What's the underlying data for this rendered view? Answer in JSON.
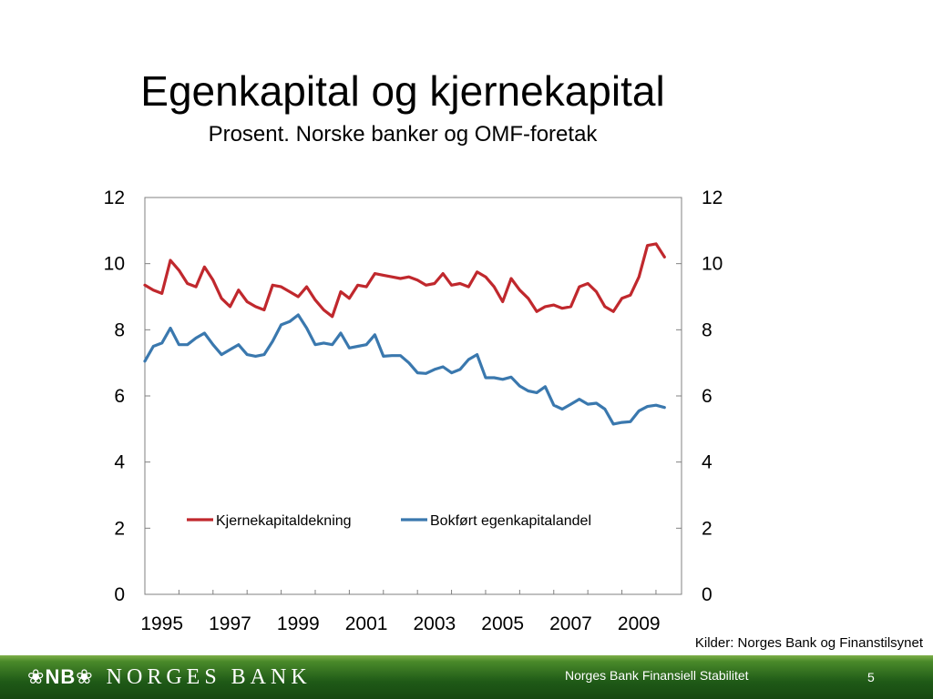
{
  "slide": {
    "title": "Egenkapital og kjernekapital",
    "subtitle": "Prosent. Norske banker og OMF-foretak",
    "source": "Kilder: Norges Bank og Finanstilsynet",
    "footer_logo_mark": "NB",
    "footer_logo_text": "NORGES BANK",
    "footer_caption": "Norges Bank Finansiell Stabilitet",
    "page_number": "5"
  },
  "chart_data": {
    "type": "line",
    "title": "",
    "xlabel": "",
    "ylabel": "",
    "ylim": [
      0,
      12
    ],
    "yticks": [
      "0",
      "2",
      "4",
      "6",
      "8",
      "10",
      "12"
    ],
    "xlim": [
      1995,
      2010.75
    ],
    "xticks": [
      "1995",
      "1997",
      "1999",
      "2001",
      "2003",
      "2005",
      "2007",
      "2009"
    ],
    "secondary_axis": true,
    "grid": false,
    "legend": "center",
    "colors": {
      "Kjernekapitaldekning": "#c0282d",
      "Bokført egenkapitalandel": "#3a78ae"
    },
    "x": [
      1995.0,
      1995.25,
      1995.5,
      1995.75,
      1996.0,
      1996.25,
      1996.5,
      1996.75,
      1997.0,
      1997.25,
      1997.5,
      1997.75,
      1998.0,
      1998.25,
      1998.5,
      1998.75,
      1999.0,
      1999.25,
      1999.5,
      1999.75,
      2000.0,
      2000.25,
      2000.5,
      2000.75,
      2001.0,
      2001.25,
      2001.5,
      2001.75,
      2002.0,
      2002.25,
      2002.5,
      2002.75,
      2003.0,
      2003.25,
      2003.5,
      2003.75,
      2004.0,
      2004.25,
      2004.5,
      2004.75,
      2005.0,
      2005.25,
      2005.5,
      2005.75,
      2006.0,
      2006.25,
      2006.5,
      2006.75,
      2007.0,
      2007.25,
      2007.5,
      2007.75,
      2008.0,
      2008.25,
      2008.5,
      2008.75,
      2009.0,
      2009.25,
      2009.5,
      2009.75,
      2010.0,
      2010.25
    ],
    "series": [
      {
        "name": "Kjernekapitaldekning",
        "values": [
          9.35,
          9.2,
          9.1,
          10.1,
          9.8,
          9.4,
          9.3,
          9.9,
          9.5,
          8.95,
          8.7,
          9.2,
          8.85,
          8.7,
          8.6,
          9.35,
          9.3,
          9.15,
          9.0,
          9.3,
          8.9,
          8.6,
          8.4,
          9.15,
          8.95,
          9.35,
          9.3,
          9.7,
          9.65,
          9.6,
          9.55,
          9.6,
          9.5,
          9.35,
          9.4,
          9.7,
          9.35,
          9.4,
          9.3,
          9.75,
          9.6,
          9.3,
          8.85,
          9.55,
          9.2,
          8.95,
          8.55,
          8.7,
          8.75,
          8.65,
          8.7,
          9.3,
          9.4,
          9.15,
          8.7,
          8.55,
          8.95,
          9.05,
          9.6,
          10.55,
          10.6,
          10.2
        ]
      },
      {
        "name": "Bokført egenkapitalandel",
        "values": [
          7.05,
          7.5,
          7.6,
          8.05,
          7.55,
          7.55,
          7.75,
          7.9,
          7.55,
          7.25,
          7.4,
          7.55,
          7.25,
          7.2,
          7.25,
          7.65,
          8.15,
          8.25,
          8.45,
          8.05,
          7.55,
          7.6,
          7.55,
          7.9,
          7.45,
          7.5,
          7.55,
          7.85,
          7.2,
          7.22,
          7.22,
          7.0,
          6.7,
          6.68,
          6.8,
          6.88,
          6.7,
          6.8,
          7.1,
          7.25,
          6.55,
          6.55,
          6.5,
          6.57,
          6.3,
          6.15,
          6.1,
          6.28,
          5.72,
          5.6,
          5.75,
          5.9,
          5.75,
          5.78,
          5.6,
          5.15,
          5.2,
          5.22,
          5.55,
          5.68,
          5.72,
          5.65
        ]
      }
    ]
  }
}
